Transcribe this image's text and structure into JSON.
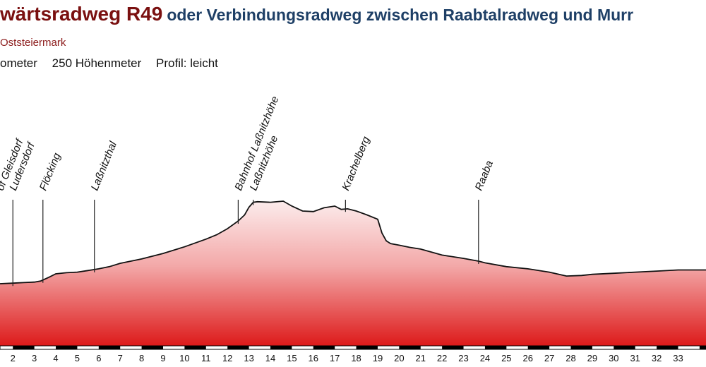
{
  "header": {
    "title": "wärtsradweg R49",
    "subtitle": "oder Verbindungsradweg zwischen Raabtalradweg und Murr",
    "region": "Oststeiermark",
    "stats": [
      "ometer",
      "250 Höhenmeter",
      "Profil: leicht"
    ]
  },
  "colors": {
    "fill_top": "#fcecec",
    "fill_bottom": "#dd1a1a",
    "title": "#7a1010",
    "subtitle": "#1e3f66"
  },
  "chart_data": {
    "type": "area",
    "title": "",
    "xlabel": "",
    "ylabel": "",
    "xlim": [
      1.4,
      34.3
    ],
    "x_ticks": [
      2,
      3,
      4,
      5,
      6,
      7,
      8,
      9,
      10,
      11,
      12,
      13,
      14,
      15,
      16,
      17,
      18,
      19,
      20,
      21,
      22,
      23,
      24,
      25,
      26,
      27,
      28,
      29,
      30,
      31,
      32,
      33
    ],
    "grid": false,
    "legend": "none",
    "profile": {
      "x": [
        1.4,
        2.0,
        2.5,
        3.0,
        3.3,
        3.7,
        4.0,
        4.5,
        5.0,
        5.5,
        6.0,
        6.5,
        7.0,
        7.5,
        8.0,
        9.0,
        10.0,
        11.0,
        11.5,
        12.0,
        12.5,
        12.8,
        13.0,
        13.2,
        13.4,
        14.0,
        14.6,
        15.0,
        15.5,
        16.0,
        16.5,
        17.0,
        17.3,
        17.6,
        18.0,
        18.5,
        19.0,
        19.2,
        19.4,
        19.6,
        20.0,
        20.5,
        21.0,
        22.0,
        23.0,
        23.7,
        24.0,
        25.0,
        26.0,
        27.0,
        27.8,
        28.5,
        29.0,
        30.0,
        31.0,
        32.0,
        33.0,
        34.3
      ],
      "y": [
        100,
        101,
        102,
        103,
        105,
        112,
        118,
        120,
        121,
        124,
        127,
        131,
        137,
        141,
        145,
        155,
        167,
        181,
        189,
        200,
        214,
        225,
        239,
        248,
        249,
        248,
        250,
        241,
        232,
        231,
        238,
        241,
        235,
        236,
        232,
        225,
        217,
        192,
        178,
        173,
        170,
        166,
        163,
        152,
        146,
        141,
        138,
        131,
        127,
        121,
        114,
        115,
        117,
        119,
        121,
        123,
        125,
        125
      ]
    },
    "annotations": [
      {
        "label": "of Gleisdorf",
        "km": 1.4,
        "marker": false
      },
      {
        "label": "Ludersdorf",
        "km": 2.0,
        "marker": true
      },
      {
        "label": "Flöcking",
        "km": 3.4,
        "marker": true
      },
      {
        "label": "Laßnitzthal",
        "km": 5.8,
        "marker": true
      },
      {
        "label": "Bahnhof Laßnitzhöhe",
        "km": 12.5,
        "marker": true
      },
      {
        "label": "Laßnitzhöhe",
        "km": 13.2,
        "marker": true
      },
      {
        "label": "Krachelberg",
        "km": 17.5,
        "marker": true
      },
      {
        "label": "Raaba",
        "km": 23.7,
        "marker": true
      }
    ]
  }
}
